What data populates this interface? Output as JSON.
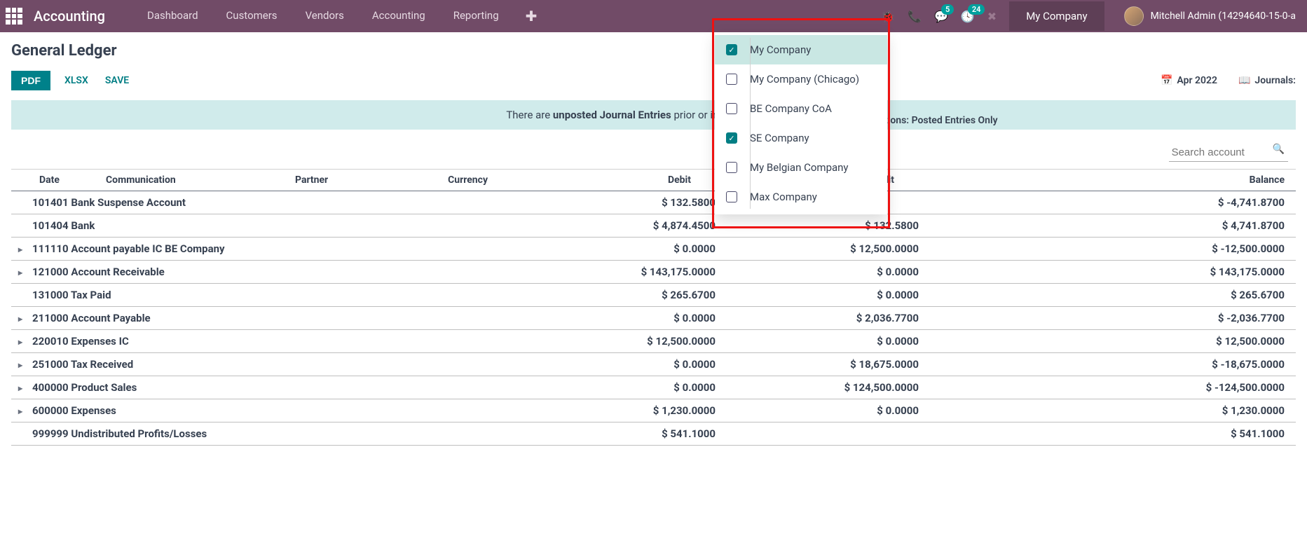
{
  "topbar": {
    "brand": "Accounting",
    "nav": [
      "Dashboard",
      "Customers",
      "Vendors",
      "Accounting",
      "Reporting"
    ],
    "msg_badge": "5",
    "activity_badge": "24",
    "company": "My Company",
    "user": "Mitchell Admin (14294640-15-0-a"
  },
  "page": {
    "title": "General Ledger",
    "btn_pdf": "PDF",
    "btn_xlsx": "XLSX",
    "btn_save": "SAVE",
    "date_filter": "Apr 2022",
    "journals_label": "Journals:",
    "options_tail": "tions: Posted Entries Only",
    "banner_pre": "There are ",
    "banner_bold": "unposted Journal Entries",
    "banner_post": " prior or included in this peri",
    "search_placeholder": "Search account"
  },
  "dropdown": {
    "items": [
      {
        "label": "My Company",
        "checked": true,
        "selected": true
      },
      {
        "label": "My Company (Chicago)",
        "checked": false
      },
      {
        "label": "BE Company CoA",
        "checked": false
      },
      {
        "label": "SE Company",
        "checked": true
      },
      {
        "label": "My Belgian Company",
        "checked": false
      },
      {
        "label": "Max Company",
        "checked": false
      }
    ]
  },
  "table": {
    "headers": {
      "date": "Date",
      "communication": "Communication",
      "partner": "Partner",
      "currency": "Currency",
      "debit": "Debit",
      "credit": "Credit",
      "balance": "Balance"
    },
    "rows": [
      {
        "expandable": false,
        "account": "101401 Bank Suspense Account",
        "debit": "$ 132.5800",
        "credit": "",
        "balance": "$ -4,741.8700"
      },
      {
        "expandable": false,
        "account": "101404 Bank",
        "debit": "$ 4,874.4500",
        "credit": "$ 132.5800",
        "balance": "$ 4,741.8700"
      },
      {
        "expandable": true,
        "account": "111110 Account payable IC BE Company",
        "debit": "$ 0.0000",
        "credit": "$ 12,500.0000",
        "balance": "$ -12,500.0000"
      },
      {
        "expandable": true,
        "account": "121000 Account Receivable",
        "debit": "$ 143,175.0000",
        "credit": "$ 0.0000",
        "balance": "$ 143,175.0000"
      },
      {
        "expandable": false,
        "account": "131000 Tax Paid",
        "debit": "$ 265.6700",
        "credit": "$ 0.0000",
        "balance": "$ 265.6700"
      },
      {
        "expandable": true,
        "account": "211000 Account Payable",
        "debit": "$ 0.0000",
        "credit": "$ 2,036.7700",
        "balance": "$ -2,036.7700"
      },
      {
        "expandable": true,
        "account": "220010 Expenses IC",
        "debit": "$ 12,500.0000",
        "credit": "$ 0.0000",
        "balance": "$ 12,500.0000"
      },
      {
        "expandable": true,
        "account": "251000 Tax Received",
        "debit": "$ 0.0000",
        "credit": "$ 18,675.0000",
        "balance": "$ -18,675.0000"
      },
      {
        "expandable": true,
        "account": "400000 Product Sales",
        "debit": "$ 0.0000",
        "credit": "$ 124,500.0000",
        "balance": "$ -124,500.0000"
      },
      {
        "expandable": true,
        "account": "600000 Expenses",
        "debit": "$ 1,230.0000",
        "credit": "$ 0.0000",
        "balance": "$ 1,230.0000"
      },
      {
        "expandable": false,
        "account": "999999 Undistributed Profits/Losses",
        "debit": "$ 541.1000",
        "credit": "",
        "balance": "$ 541.1000"
      }
    ]
  },
  "colors": {
    "brand_bg": "#714b67",
    "teal": "#00818a",
    "banner": "#d0ebeb"
  }
}
